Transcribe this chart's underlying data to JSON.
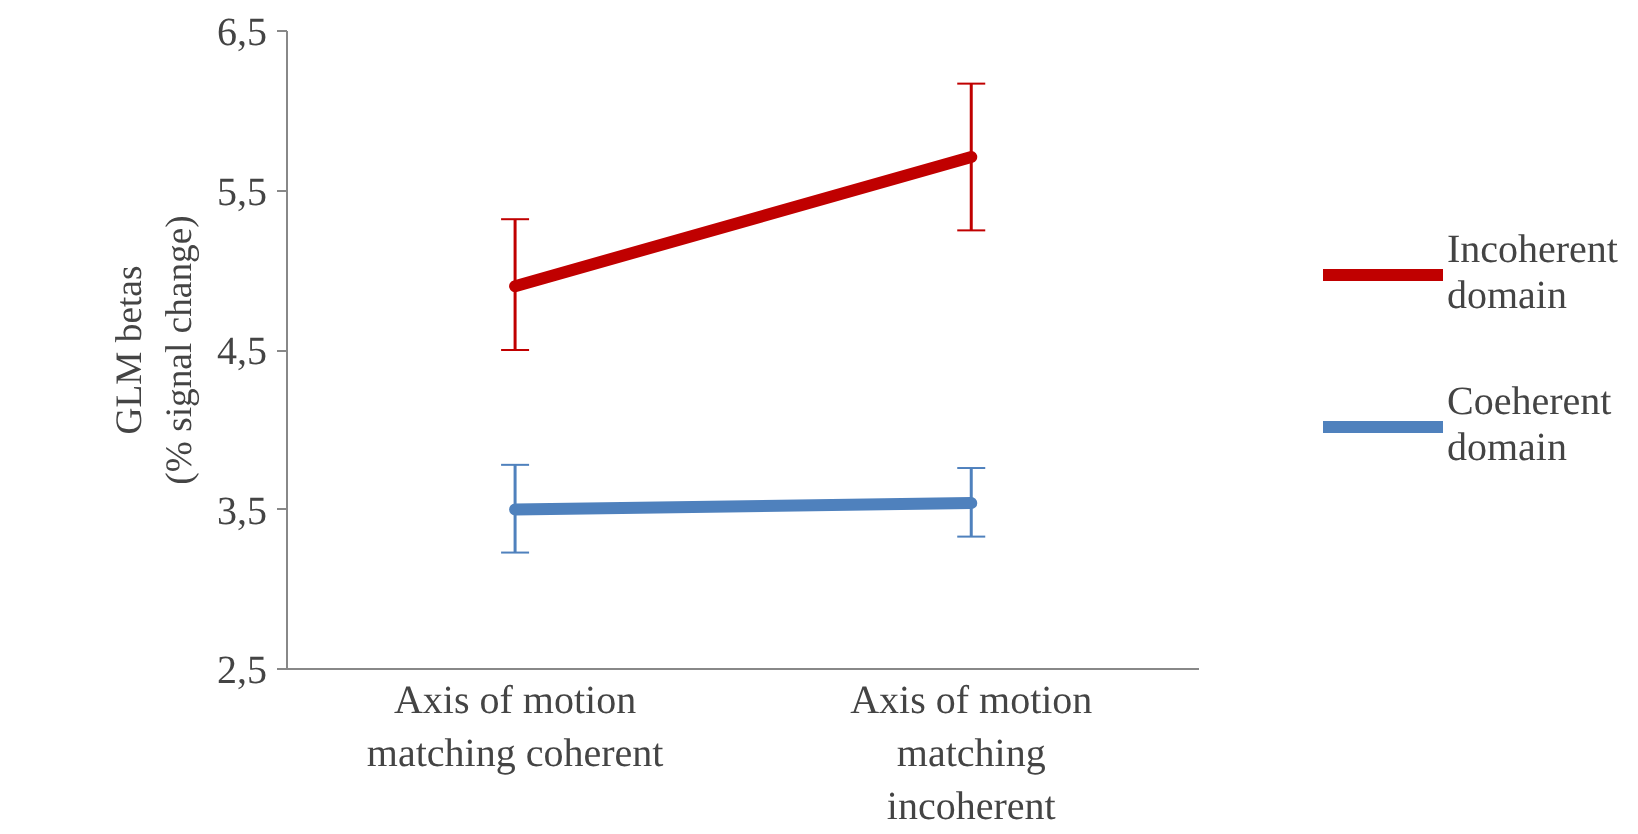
{
  "chart_data": {
    "type": "line",
    "ylabel": "GLM betas\n(% signal change)",
    "categories": [
      "Axis of motion matching coherent",
      "Axis of motion matching incoherent"
    ],
    "series": [
      {
        "name": "Incoherent domain",
        "color": "#c00000",
        "values": [
          4.9,
          5.71
        ],
        "errors": [
          [
            4.5,
            5.32
          ],
          [
            5.25,
            6.17
          ]
        ]
      },
      {
        "name": "Coeherent domain",
        "color": "#4f81bd",
        "values": [
          3.5,
          3.54
        ],
        "errors": [
          [
            3.23,
            3.78
          ],
          [
            3.33,
            3.76
          ]
        ]
      }
    ],
    "ylim": [
      2.5,
      6.5
    ],
    "yticks": [
      {
        "value": 2.5,
        "label": "2,5"
      },
      {
        "value": 3.5,
        "label": "3,5"
      },
      {
        "value": 4.5,
        "label": "4,5"
      },
      {
        "value": 5.5,
        "label": "5,5"
      },
      {
        "value": 6.5,
        "label": "6,5"
      }
    ],
    "grid": false,
    "legend": "right",
    "marker": "none",
    "line_style": "solid"
  }
}
